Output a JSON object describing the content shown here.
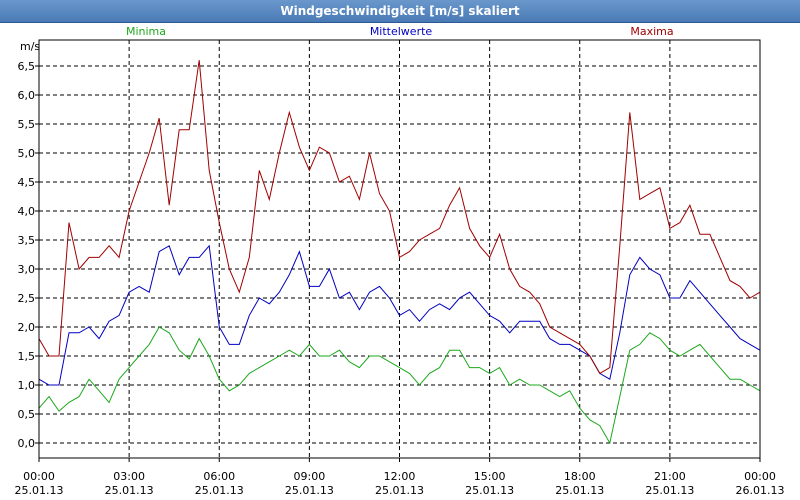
{
  "chart_data": {
    "type": "line",
    "title": "Windgeschwindigkeit [m/s] skaliert",
    "ylabel": "m/s",
    "xlabel": "",
    "ylim": [
      -0.2,
      7.0
    ],
    "xlim": [
      "25.01.13 00:00",
      "26.01.13 00:00"
    ],
    "grid": true,
    "legend_position": "top",
    "y_ticks": [
      "0,0",
      "0,5",
      "1,0",
      "1,5",
      "2,0",
      "2,5",
      "3,0",
      "3,5",
      "4,0",
      "4,5",
      "5,0",
      "5,5",
      "6,0",
      "6,5"
    ],
    "x_ticks": [
      {
        "time": "00:00",
        "date": "25.01.13"
      },
      {
        "time": "03:00",
        "date": "25.01.13"
      },
      {
        "time": "06:00",
        "date": "25.01.13"
      },
      {
        "time": "09:00",
        "date": "25.01.13"
      },
      {
        "time": "12:00",
        "date": "25.01.13"
      },
      {
        "time": "15:00",
        "date": "25.01.13"
      },
      {
        "time": "18:00",
        "date": "25.01.13"
      },
      {
        "time": "21:00",
        "date": "25.01.13"
      },
      {
        "time": "00:00",
        "date": "26.01.13"
      }
    ],
    "series": [
      {
        "name": "Minima",
        "color": "#1ea81e",
        "x": [
          "00:00",
          "00:20",
          "00:40",
          "01:00",
          "01:20",
          "01:40",
          "02:00",
          "02:20",
          "02:40",
          "03:00",
          "03:20",
          "03:40",
          "04:00",
          "04:20",
          "04:40",
          "05:00",
          "05:20",
          "05:40",
          "06:00",
          "06:20",
          "06:40",
          "07:00",
          "07:20",
          "07:40",
          "08:00",
          "08:20",
          "08:40",
          "09:00",
          "09:20",
          "09:40",
          "10:00",
          "10:20",
          "10:40",
          "11:00",
          "11:20",
          "11:40",
          "12:00",
          "12:20",
          "12:40",
          "13:00",
          "13:20",
          "13:40",
          "14:00",
          "14:20",
          "14:40",
          "15:00",
          "15:20",
          "15:40",
          "16:00",
          "16:20",
          "16:40",
          "17:00",
          "17:20",
          "17:40",
          "18:00",
          "18:20",
          "18:40",
          "19:00",
          "19:20",
          "19:40",
          "20:00",
          "20:20",
          "20:40",
          "21:00",
          "21:20",
          "21:40",
          "22:00",
          "22:20",
          "22:40",
          "23:00",
          "23:20",
          "23:40",
          "24:00"
        ],
        "values": [
          0.6,
          0.8,
          0.55,
          0.7,
          0.8,
          1.1,
          0.9,
          0.7,
          1.1,
          1.3,
          1.5,
          1.7,
          2.0,
          1.9,
          1.6,
          1.45,
          1.8,
          1.5,
          1.1,
          0.9,
          1.0,
          1.2,
          1.3,
          1.4,
          1.5,
          1.6,
          1.5,
          1.7,
          1.5,
          1.5,
          1.6,
          1.4,
          1.3,
          1.5,
          1.5,
          1.4,
          1.3,
          1.2,
          1.0,
          1.2,
          1.3,
          1.6,
          1.6,
          1.3,
          1.3,
          1.2,
          1.3,
          1.0,
          1.1,
          1.0,
          1.0,
          0.9,
          0.8,
          0.9,
          0.6,
          0.4,
          0.3,
          0.0,
          0.8,
          1.6,
          1.7,
          1.9,
          1.8,
          1.6,
          1.5,
          1.6,
          1.7,
          1.5,
          1.3,
          1.1,
          1.1,
          1.0,
          0.9
        ]
      },
      {
        "name": "Mittelwerte",
        "color": "#0000c0",
        "x": [
          "00:00",
          "00:20",
          "00:40",
          "01:00",
          "01:20",
          "01:40",
          "02:00",
          "02:20",
          "02:40",
          "03:00",
          "03:20",
          "03:40",
          "04:00",
          "04:20",
          "04:40",
          "05:00",
          "05:20",
          "05:40",
          "06:00",
          "06:20",
          "06:40",
          "07:00",
          "07:20",
          "07:40",
          "08:00",
          "08:20",
          "08:40",
          "09:00",
          "09:20",
          "09:40",
          "10:00",
          "10:20",
          "10:40",
          "11:00",
          "11:20",
          "11:40",
          "12:00",
          "12:20",
          "12:40",
          "13:00",
          "13:20",
          "13:40",
          "14:00",
          "14:20",
          "14:40",
          "15:00",
          "15:20",
          "15:40",
          "16:00",
          "16:20",
          "16:40",
          "17:00",
          "17:20",
          "17:40",
          "18:00",
          "18:20",
          "18:40",
          "19:00",
          "19:20",
          "19:40",
          "20:00",
          "20:20",
          "20:40",
          "21:00",
          "21:20",
          "21:40",
          "22:00",
          "22:20",
          "22:40",
          "23:00",
          "23:20",
          "23:40",
          "24:00"
        ],
        "values": [
          1.1,
          1.0,
          1.0,
          1.9,
          1.9,
          2.0,
          1.8,
          2.1,
          2.2,
          2.6,
          2.7,
          2.6,
          3.3,
          3.4,
          2.9,
          3.2,
          3.2,
          3.4,
          2.0,
          1.7,
          1.7,
          2.2,
          2.5,
          2.4,
          2.6,
          2.9,
          3.3,
          2.7,
          2.7,
          3.0,
          2.5,
          2.6,
          2.3,
          2.6,
          2.7,
          2.5,
          2.2,
          2.3,
          2.1,
          2.3,
          2.4,
          2.3,
          2.5,
          2.6,
          2.4,
          2.2,
          2.1,
          1.9,
          2.1,
          2.1,
          2.1,
          1.8,
          1.7,
          1.7,
          1.6,
          1.5,
          1.2,
          1.1,
          1.9,
          2.9,
          3.2,
          3.0,
          2.9,
          2.5,
          2.5,
          2.8,
          2.6,
          2.4,
          2.2,
          2.0,
          1.8,
          1.7,
          1.6
        ]
      },
      {
        "name": "Maxima",
        "color": "#a00000",
        "x": [
          "00:00",
          "00:20",
          "00:40",
          "01:00",
          "01:20",
          "01:40",
          "02:00",
          "02:20",
          "02:40",
          "03:00",
          "03:20",
          "03:40",
          "04:00",
          "04:20",
          "04:40",
          "05:00",
          "05:20",
          "05:40",
          "06:00",
          "06:20",
          "06:40",
          "07:00",
          "07:20",
          "07:40",
          "08:00",
          "08:20",
          "08:40",
          "09:00",
          "09:20",
          "09:40",
          "10:00",
          "10:20",
          "10:40",
          "11:00",
          "11:20",
          "11:40",
          "12:00",
          "12:20",
          "12:40",
          "13:00",
          "13:20",
          "13:40",
          "14:00",
          "14:20",
          "14:40",
          "15:00",
          "15:20",
          "15:40",
          "16:00",
          "16:20",
          "16:40",
          "17:00",
          "17:20",
          "17:40",
          "18:00",
          "18:20",
          "18:40",
          "19:00",
          "19:20",
          "19:40",
          "20:00",
          "20:20",
          "20:40",
          "21:00",
          "21:20",
          "21:40",
          "22:00",
          "22:20",
          "22:40",
          "23:00",
          "23:20",
          "23:40",
          "24:00"
        ],
        "values": [
          1.8,
          1.5,
          1.5,
          3.8,
          3.0,
          3.2,
          3.2,
          3.4,
          3.2,
          4.0,
          4.5,
          5.0,
          5.6,
          4.1,
          5.4,
          5.4,
          6.6,
          4.7,
          3.8,
          3.0,
          2.6,
          3.2,
          4.7,
          4.2,
          5.0,
          5.7,
          5.1,
          4.7,
          5.1,
          5.0,
          4.5,
          4.6,
          4.2,
          5.0,
          4.3,
          4.0,
          3.2,
          3.3,
          3.5,
          3.6,
          3.7,
          4.1,
          4.4,
          3.7,
          3.4,
          3.2,
          3.6,
          3.0,
          2.7,
          2.6,
          2.4,
          2.0,
          1.9,
          1.8,
          1.7,
          1.5,
          1.2,
          1.3,
          3.4,
          5.7,
          4.2,
          4.3,
          4.4,
          3.7,
          3.8,
          4.1,
          3.6,
          3.6,
          3.2,
          2.8,
          2.7,
          2.5,
          2.6
        ]
      }
    ]
  }
}
